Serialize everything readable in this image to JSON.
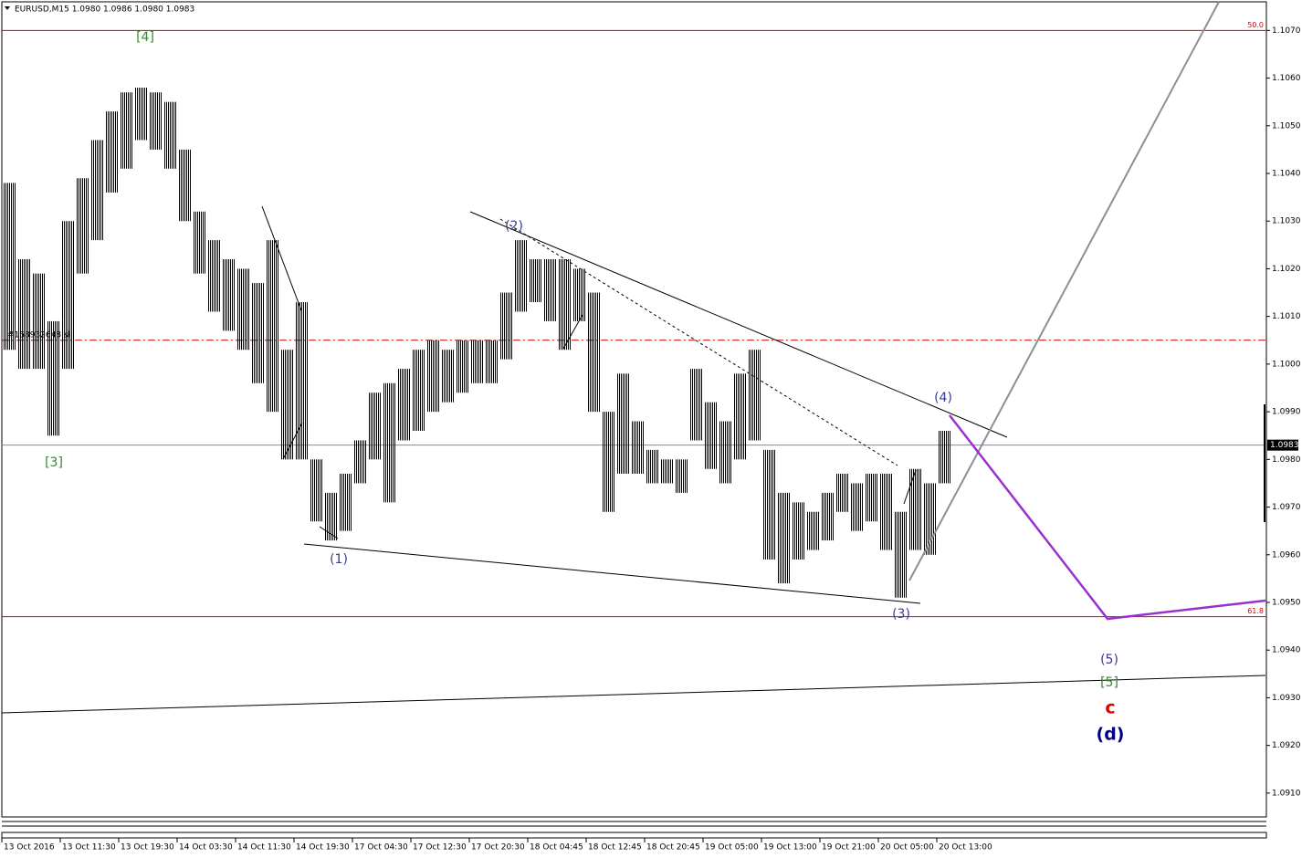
{
  "chart_data": {
    "type": "ohlc",
    "title": "EURUSD,M15  1.0980 1.0986 1.0980 1.0983",
    "x": [
      1,
      3,
      5,
      7,
      9,
      11,
      13,
      15,
      17,
      19,
      21,
      23,
      25,
      27,
      29,
      31,
      33,
      35,
      37,
      39,
      41,
      43,
      45,
      47,
      49,
      51,
      53,
      55,
      57,
      59,
      61,
      63,
      65,
      67,
      69,
      71,
      73,
      75,
      77,
      79,
      81,
      83,
      85,
      87,
      89,
      91,
      93,
      95,
      97,
      99,
      101,
      103,
      105,
      107,
      109,
      111,
      113,
      115,
      117,
      119,
      121,
      123,
      125,
      127,
      129
    ],
    "series": [
      {
        "name": "high",
        "values": [
          1.1038,
          1.1022,
          1.1019,
          1.1009,
          1.103,
          1.1039,
          1.1047,
          1.1053,
          1.1057,
          1.1058,
          1.1057,
          1.1055,
          1.1045,
          1.1032,
          1.1026,
          1.1022,
          1.102,
          1.1017,
          1.1026,
          1.1003,
          1.1013,
          1.098,
          1.0973,
          1.0977,
          1.0984,
          1.0994,
          1.0996,
          1.0999,
          1.1003,
          1.1005,
          1.1003,
          1.1005,
          1.1005,
          1.1005,
          1.1015,
          1.1026,
          1.1022,
          1.1022,
          1.1022,
          1.102,
          1.1015,
          1.099,
          1.0998,
          1.0988,
          1.0982,
          1.098,
          1.098,
          1.0999,
          1.0992,
          1.0988,
          1.0998,
          1.1003,
          1.0982,
          1.0973,
          1.0971,
          1.0969,
          1.0973,
          1.0977,
          1.0975,
          1.0977,
          1.0977,
          1.0969,
          1.0978,
          1.0975,
          1.0986
        ]
      },
      {
        "name": "low",
        "values": [
          1.1003,
          1.0999,
          1.0999,
          1.0985,
          1.0999,
          1.1019,
          1.1026,
          1.1036,
          1.1041,
          1.1047,
          1.1045,
          1.1041,
          1.103,
          1.1019,
          1.1011,
          1.1007,
          1.1003,
          1.0996,
          1.099,
          1.098,
          1.098,
          1.0967,
          1.0963,
          1.0965,
          1.0975,
          1.098,
          1.0971,
          1.0984,
          1.0986,
          1.099,
          1.0992,
          1.0994,
          1.0996,
          1.0996,
          1.1001,
          1.1011,
          1.1013,
          1.1009,
          1.1003,
          1.1009,
          1.099,
          1.0969,
          1.0977,
          1.0977,
          1.0975,
          1.0975,
          1.0973,
          1.0984,
          1.0978,
          1.0975,
          1.098,
          1.0984,
          1.0959,
          1.0954,
          1.0959,
          1.0961,
          1.0963,
          1.0969,
          1.0965,
          1.0967,
          1.0961,
          1.0951,
          1.0961,
          1.096,
          1.0975
        ]
      }
    ],
    "color": "#000000",
    "xlim": [
      0,
      173
    ],
    "xticks": [
      {
        "value": 0,
        "label": "13 Oct 2016"
      },
      {
        "value": 8,
        "label": "13 Oct 11:30"
      },
      {
        "value": 16,
        "label": "13 Oct 19:30"
      },
      {
        "value": 24,
        "label": "14 Oct 03:30"
      },
      {
        "value": 32,
        "label": "14 Oct 11:30"
      },
      {
        "value": 40,
        "label": "14 Oct 19:30"
      },
      {
        "value": 48,
        "label": "17 Oct 04:30"
      },
      {
        "value": 56,
        "label": "17 Oct 12:30"
      },
      {
        "value": 64,
        "label": "17 Oct 20:30"
      },
      {
        "value": 72,
        "label": "18 Oct 04:45"
      },
      {
        "value": 80,
        "label": "18 Oct 12:45"
      },
      {
        "value": 88,
        "label": "18 Oct 20:45"
      },
      {
        "value": 96,
        "label": "19 Oct 05:00"
      },
      {
        "value": 104,
        "label": "19 Oct 13:00"
      },
      {
        "value": 112,
        "label": "19 Oct 21:00"
      },
      {
        "value": 120,
        "label": "20 Oct 05:00"
      },
      {
        "value": 128,
        "label": "20 Oct 13:00"
      }
    ],
    "ylim": [
      1.0905,
      1.1076
    ],
    "yticks": [
      {
        "value": 1.091,
        "label": "1.0910"
      },
      {
        "value": 1.092,
        "label": "1.0920"
      },
      {
        "value": 1.093,
        "label": "1.0930"
      },
      {
        "value": 1.094,
        "label": "1.0940"
      },
      {
        "value": 1.095,
        "label": "1.0950"
      },
      {
        "value": 1.096,
        "label": "1.0960"
      },
      {
        "value": 1.097,
        "label": "1.0970"
      },
      {
        "value": 1.098,
        "label": "1.0980"
      },
      {
        "value": 1.099,
        "label": "1.0990"
      },
      {
        "value": 1.1,
        "label": "1.1000"
      },
      {
        "value": 1.101,
        "label": "1.1010"
      },
      {
        "value": 1.102,
        "label": "1.1020"
      },
      {
        "value": 1.103,
        "label": "1.1030"
      },
      {
        "value": 1.104,
        "label": "1.1040"
      },
      {
        "value": 1.105,
        "label": "1.1050"
      },
      {
        "value": 1.106,
        "label": "1.1060"
      },
      {
        "value": 1.107,
        "label": "1.1070"
      }
    ],
    "current_price": {
      "value": 1.0983,
      "label": "1.0983",
      "color": "#6a8cc8"
    },
    "levels": [
      {
        "price": 1.107,
        "label": "50.0",
        "color": "#d40000",
        "style": "solid"
      },
      {
        "price": 1.1005,
        "label": "#158932648 sl",
        "color": "#d40000",
        "style": "dashdot"
      },
      {
        "price": 1.0947,
        "label": "61.8",
        "color": "#d40000",
        "style": "solid"
      }
    ],
    "annotations": [
      {
        "text": "[4]",
        "color": "#2e8b2e"
      },
      {
        "text": "[3]",
        "color": "#2e8b2e"
      },
      {
        "text": "(1)",
        "color": "#3a3a9a"
      },
      {
        "text": "(2)",
        "color": "#3a3a9a"
      },
      {
        "text": "(3)",
        "color": "#3a3a9a"
      },
      {
        "text": "(4)",
        "color": "#3a3a9a"
      },
      {
        "text": "(5)",
        "color": "#3a3a9a"
      },
      {
        "text": "[5]",
        "color": "#2e8b2e"
      },
      {
        "text": "c",
        "color": "#e00000"
      },
      {
        "text": "(d)",
        "color": "#000080"
      }
    ]
  }
}
